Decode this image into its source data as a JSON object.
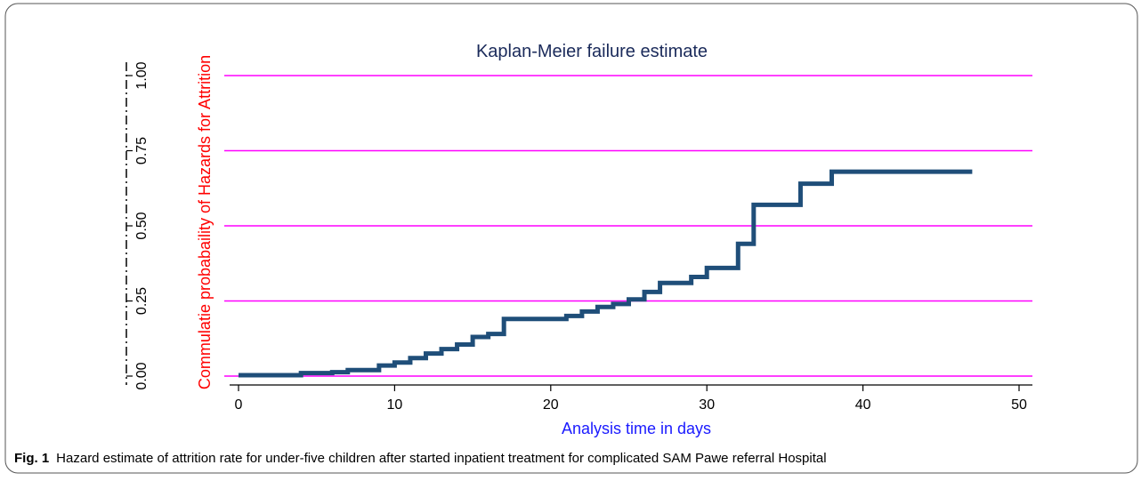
{
  "chart_data": {
    "type": "step",
    "title": "Kaplan-Meier failure estimate",
    "x_label": "Analysis time in days",
    "y_label": "Commulatie probabaility of Hazards for Attrition",
    "caption_label": "Fig. 1",
    "caption": "Hazard estimate of attrition rate for under-five children after started inpatient treatment for complicated SAM Pawe referral Hospital",
    "x": [
      0,
      4,
      6,
      7,
      9,
      10,
      11,
      12,
      13,
      14,
      15,
      16,
      17,
      21,
      22,
      23,
      24,
      25,
      26,
      27,
      29,
      30,
      32,
      33,
      36,
      38,
      47
    ],
    "values": [
      0.003,
      0.01,
      0.013,
      0.02,
      0.035,
      0.045,
      0.06,
      0.075,
      0.09,
      0.105,
      0.13,
      0.14,
      0.19,
      0.2,
      0.215,
      0.23,
      0.24,
      0.255,
      0.28,
      0.31,
      0.33,
      0.36,
      0.44,
      0.57,
      0.64,
      0.68,
      0.68
    ],
    "color": "#1f4e79",
    "grid_color": "#ff00ff",
    "grid": true,
    "xlim": [
      0,
      50
    ],
    "xticks": [
      0,
      10,
      20,
      30,
      40,
      50
    ],
    "ylim": [
      0,
      1
    ],
    "yticks": [
      {
        "value": 0,
        "label": "0.00"
      },
      {
        "value": 0.25,
        "label": "0.25"
      },
      {
        "value": 0.5,
        "label": "0.50"
      },
      {
        "value": 0.75,
        "label": "0.75"
      },
      {
        "value": 1,
        "label": "1.00"
      }
    ]
  }
}
